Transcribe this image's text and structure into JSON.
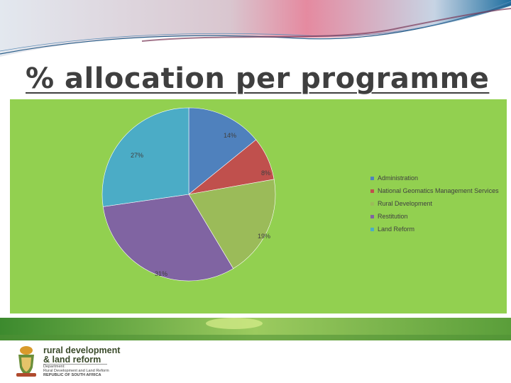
{
  "slide": {
    "title": "% allocation per programme"
  },
  "chart_data": {
    "type": "pie",
    "title": "",
    "slices": [
      {
        "label": "Administration",
        "value": 14,
        "display": "14%",
        "color": "#4f81bd"
      },
      {
        "label": "National Geomatics Management Services",
        "value": 8,
        "display": "8%",
        "color": "#c0504d"
      },
      {
        "label": "Rural Development",
        "value": 19,
        "display": "19%",
        "color": "#9bbb59"
      },
      {
        "label": "Restitution",
        "value": 31,
        "display": "31%",
        "color": "#8064a2"
      },
      {
        "label": "Land Reform",
        "value": 27,
        "display": "27%",
        "color": "#4bacc6"
      }
    ],
    "legend_position": "right",
    "start_angle": "12 o'clock, clockwise"
  },
  "colors": {
    "chart_background": "#92d050",
    "title_text": "#3f3f3f",
    "label_text": "#404040",
    "banner": [
      "#d6dde8",
      "#e58aa0",
      "#1f6fa0"
    ],
    "stripe": [
      "#3c8a2e",
      "#a5d26a"
    ]
  },
  "footer": {
    "logo_icon": "coat-of-arms-icon",
    "logo_line1": "rural development",
    "logo_line2": "& land reform",
    "dept_line1": "Department:",
    "dept_line2": "Rural Development and Land Reform",
    "dept_line3": "REPUBLIC OF SOUTH AFRICA"
  }
}
